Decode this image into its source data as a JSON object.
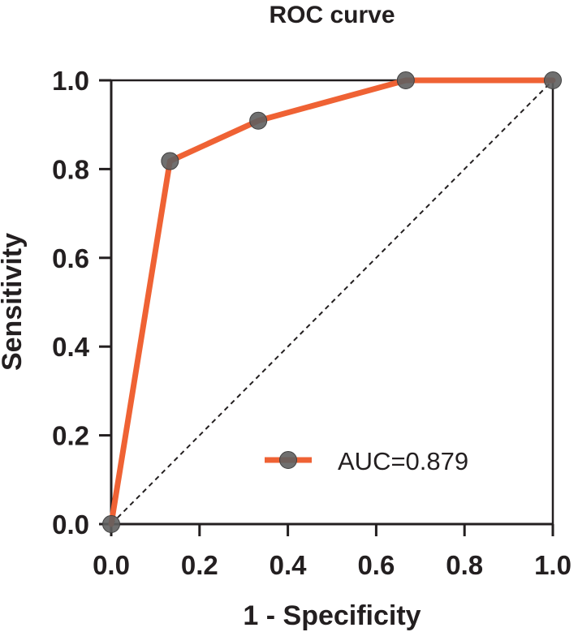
{
  "chart_data": {
    "type": "line",
    "title": "ROC curve",
    "xlabel": "1 - Specificity",
    "ylabel": "Sensitivity",
    "xlim": [
      0,
      1
    ],
    "ylim": [
      0,
      1
    ],
    "x_ticks": [
      "0.0",
      "0.2",
      "0.4",
      "0.6",
      "0.8",
      "1.0"
    ],
    "y_ticks": [
      "0.0",
      "0.2",
      "0.4",
      "0.6",
      "0.8",
      "1.0"
    ],
    "grid": false,
    "legend_position": "bottom-right",
    "series": [
      {
        "name": "AUC=0.879",
        "color": "#ef6234",
        "marker_color": "#5f5f5f",
        "x": [
          0.0,
          0.133,
          0.333,
          0.667,
          1.0
        ],
        "y": [
          0.0,
          0.818,
          0.909,
          1.0,
          1.0
        ]
      }
    ],
    "reference_line": {
      "style": "dashed",
      "x": [
        0,
        1
      ],
      "y": [
        0,
        1
      ]
    }
  }
}
